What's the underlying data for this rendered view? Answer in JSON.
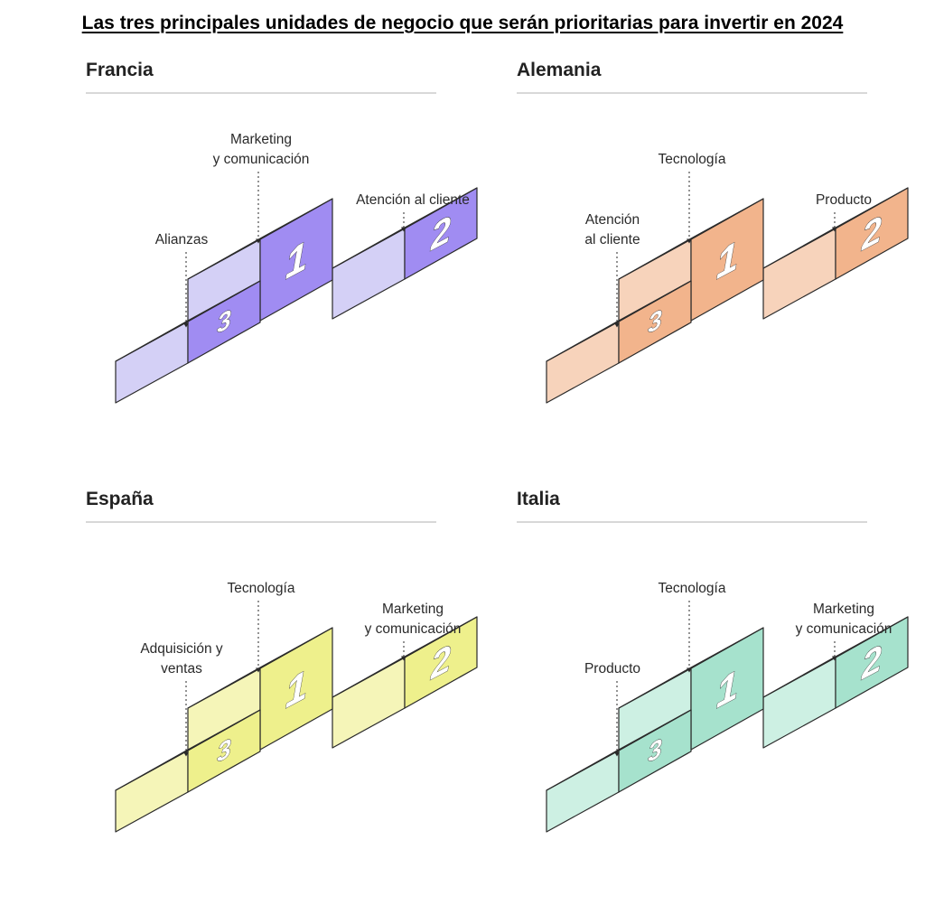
{
  "title": "Las tres principales unidades de negocio que serán prioritarias para invertir en 2024",
  "panels": [
    {
      "country": "Francia",
      "colors": {
        "top": "#ebebfb",
        "left": "#d4d0f6",
        "front": "#a08cf2"
      },
      "first": [
        "Marketing",
        "y comunicación"
      ],
      "second": [
        "Atención al cliente"
      ],
      "third": [
        "Alianzas"
      ]
    },
    {
      "country": "Alemania",
      "colors": {
        "top": "#fbe5d6",
        "left": "#f7d3bb",
        "front": "#f2b48c"
      },
      "first": [
        "Tecnología"
      ],
      "second": [
        "Producto"
      ],
      "third": [
        "Atención",
        "al cliente"
      ]
    },
    {
      "country": "España",
      "colors": {
        "top": "#fbfbd8",
        "left": "#f5f5b8",
        "front": "#eef08c"
      },
      "first": [
        "Tecnología"
      ],
      "second": [
        "Marketing",
        "y comunicación"
      ],
      "third": [
        "Adquisición y",
        "ventas"
      ]
    },
    {
      "country": "Italia",
      "colors": {
        "top": "#e0f6ee",
        "left": "#cdf0e3",
        "front": "#a6e2cd"
      },
      "first": [
        "Tecnología"
      ],
      "second": [
        "Marketing",
        "y comunicación"
      ],
      "third": [
        "Producto"
      ]
    }
  ],
  "ranks": {
    "first": "1",
    "second": "2",
    "third": "3"
  }
}
